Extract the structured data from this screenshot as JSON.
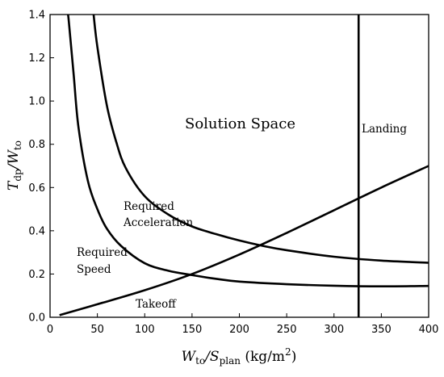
{
  "chart_data": {
    "type": "line",
    "xlabel": {
      "main": "W",
      "main_sub": "to",
      "sep": "/S",
      "sep_sub": "plan",
      "unit_open": " (kg/m",
      "unit_sup": "2",
      "unit_close": ")"
    },
    "ylabel": {
      "main": "T",
      "main_sub": "dp",
      "sep": "/W",
      "sep_sub": "to"
    },
    "xlim": [
      0,
      400
    ],
    "ylim": [
      0,
      1.4
    ],
    "xticks": [
      0,
      50,
      100,
      150,
      200,
      250,
      300,
      350,
      400
    ],
    "yticks": [
      0.0,
      0.2,
      0.4,
      0.6,
      0.8,
      1.0,
      1.2,
      1.4
    ],
    "ytick_labels": [
      "0.0",
      "0.2",
      "0.4",
      "0.6",
      "0.8",
      "1.0",
      "1.2",
      "1.4"
    ],
    "grid": false,
    "legend": "none",
    "annotations": {
      "solution_space": "Solution Space",
      "landing": "Landing",
      "required_acceleration_line1": "Required",
      "required_acceleration_line2": "Acceleration",
      "required_speed_line1": "Required",
      "required_speed_line2": "Speed",
      "takeoff": "Takeoff"
    },
    "series": [
      {
        "id": "required-speed",
        "color": "#000000",
        "x": [
          19,
          20,
          25,
          30,
          40,
          50,
          60,
          75,
          100,
          125,
          150,
          175,
          200,
          250,
          300,
          350,
          400
        ],
        "y": [
          1.4,
          1.36,
          1.12,
          0.88,
          0.63,
          0.5,
          0.41,
          0.33,
          0.25,
          0.215,
          0.195,
          0.178,
          0.165,
          0.153,
          0.146,
          0.143,
          0.145
        ]
      },
      {
        "id": "required-acceleration",
        "color": "#000000",
        "x": [
          46,
          50,
          60,
          70,
          80,
          100,
          125,
          150,
          175,
          200,
          225,
          250,
          300,
          350,
          400
        ],
        "y": [
          1.4,
          1.25,
          0.98,
          0.81,
          0.69,
          0.56,
          0.475,
          0.42,
          0.385,
          0.355,
          0.33,
          0.31,
          0.28,
          0.262,
          0.252
        ]
      },
      {
        "id": "takeoff",
        "color": "#000000",
        "x": [
          10,
          50,
          100,
          150,
          200,
          250,
          300,
          350,
          400
        ],
        "y": [
          0.01,
          0.06,
          0.125,
          0.2,
          0.29,
          0.39,
          0.495,
          0.6,
          0.7
        ]
      },
      {
        "id": "landing",
        "color": "#000000",
        "x": [
          326,
          326
        ],
        "y": [
          0,
          1.4
        ]
      }
    ]
  }
}
